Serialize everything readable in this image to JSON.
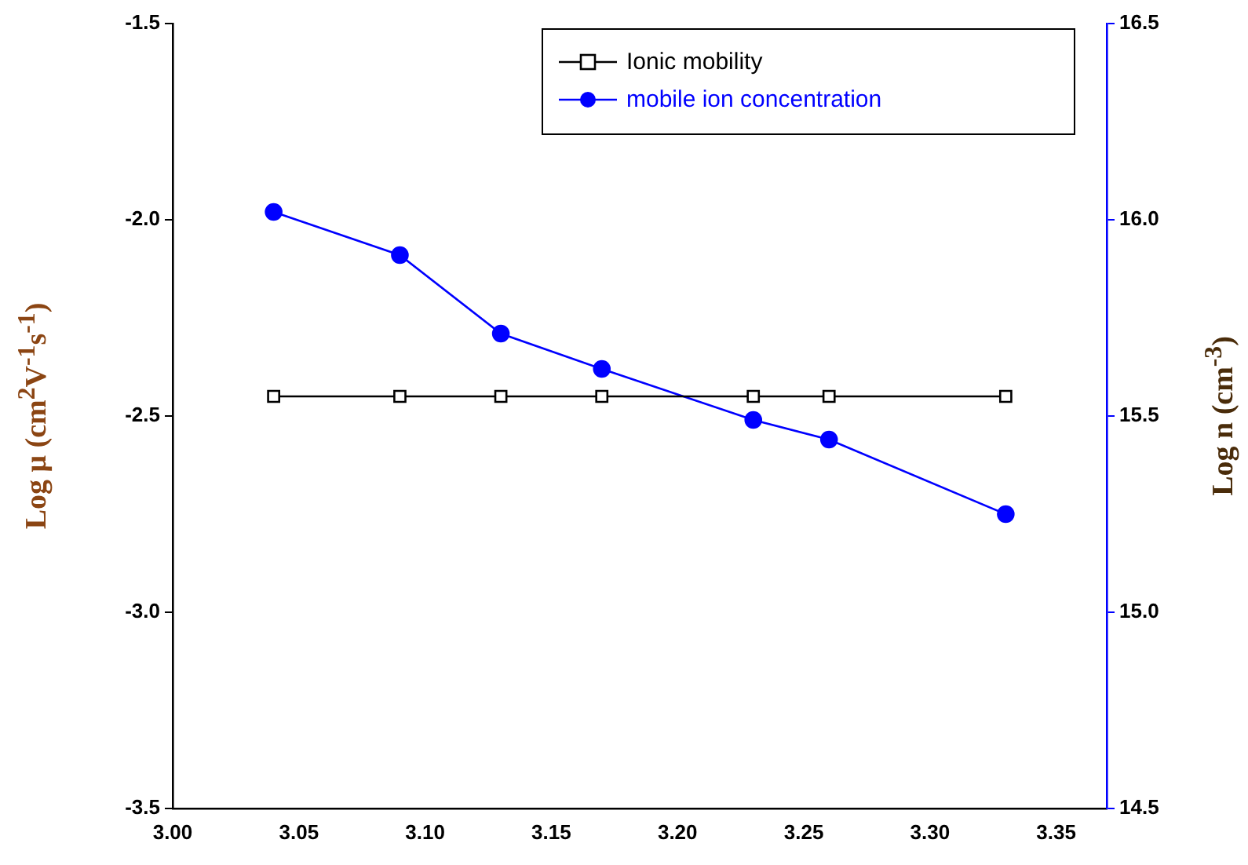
{
  "chart_data": {
    "type": "line",
    "ylabel": "Log μ (cm$^{2}$V$^{-1}$s$^{-1}$)",
    "y2label": "Log n (cm$^{-3}$)",
    "x": [
      3.04,
      3.09,
      3.13,
      3.17,
      3.23,
      3.26,
      3.33
    ],
    "xlim": [
      3.0,
      3.37
    ],
    "xticks": [
      {
        "value": 3.0,
        "label": "3.00"
      },
      {
        "value": 3.05,
        "label": "3.05"
      },
      {
        "value": 3.1,
        "label": "3.10"
      },
      {
        "value": 3.15,
        "label": "3.15"
      },
      {
        "value": 3.2,
        "label": "3.20"
      },
      {
        "value": 3.25,
        "label": "3.25"
      },
      {
        "value": 3.3,
        "label": "3.30"
      },
      {
        "value": 3.35,
        "label": "3.35"
      }
    ],
    "ylim": [
      -3.5,
      -1.5
    ],
    "yticks": [
      {
        "value": -3.5,
        "label": "-3.5"
      },
      {
        "value": -3.0,
        "label": "-3.0"
      },
      {
        "value": -2.5,
        "label": "-2.5"
      },
      {
        "value": -2.0,
        "label": "-2.0"
      },
      {
        "value": -1.5,
        "label": "-1.5"
      }
    ],
    "y2lim": [
      14.5,
      16.5
    ],
    "y2ticks": [
      {
        "value": 14.5,
        "label": "14.5"
      },
      {
        "value": 15.0,
        "label": "15.0"
      },
      {
        "value": 15.5,
        "label": "15.5"
      },
      {
        "value": 16.0,
        "label": "16.0"
      },
      {
        "value": 16.5,
        "label": "16.5"
      }
    ],
    "series": [
      {
        "name": "Ionic mobility",
        "color": "#000000",
        "marker": "square",
        "values": [
          -2.45,
          -2.45,
          -2.45,
          -2.45,
          -2.45,
          -2.45,
          -2.45
        ]
      },
      {
        "name": "mobile ion concentration",
        "color": "#0000ff",
        "marker": "circle",
        "axis": "y2",
        "values": [
          16.02,
          15.91,
          15.71,
          15.62,
          15.49,
          15.44,
          15.25
        ]
      }
    ],
    "legend": "top right",
    "grid": false
  }
}
